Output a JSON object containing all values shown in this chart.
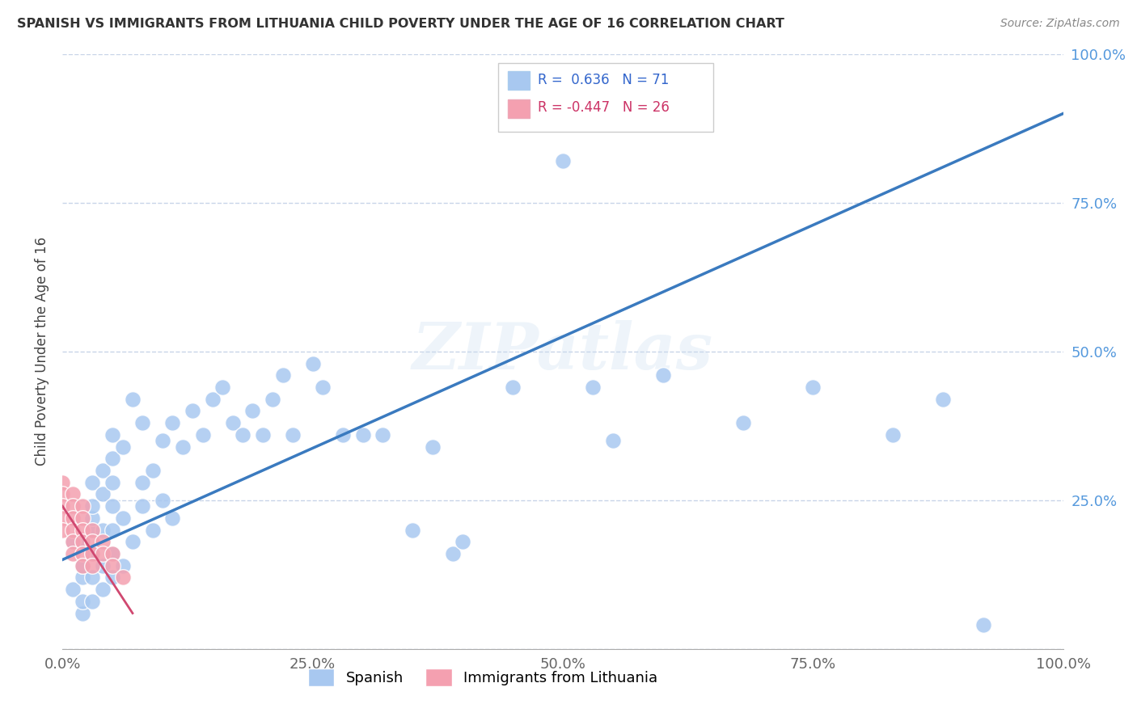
{
  "title": "SPANISH VS IMMIGRANTS FROM LITHUANIA CHILD POVERTY UNDER THE AGE OF 16 CORRELATION CHART",
  "source": "Source: ZipAtlas.com",
  "ylabel": "Child Poverty Under the Age of 16",
  "watermark": "ZIPatlas",
  "legend_r1_val": "0.636",
  "legend_n1_val": "71",
  "legend_r2_val": "-0.447",
  "legend_n2_val": "26",
  "blue_color": "#a8c8f0",
  "pink_color": "#f4a0b0",
  "line_color": "#3a7abf",
  "pink_line_color": "#d04870",
  "background_color": "#ffffff",
  "grid_color": "#c8d4e8",
  "xlim": [
    0.0,
    1.0
  ],
  "ylim": [
    0.0,
    1.0
  ],
  "xticks": [
    0.0,
    0.25,
    0.5,
    0.75,
    1.0
  ],
  "yticks": [
    0.0,
    0.25,
    0.5,
    0.75,
    1.0
  ],
  "xticklabels": [
    "0.0%",
    "25.0%",
    "50.0%",
    "75.0%",
    "100.0%"
  ],
  "yticklabels": [
    "",
    "25.0%",
    "50.0%",
    "75.0%",
    "100.0%"
  ],
  "spanish_x": [
    0.01,
    0.01,
    0.02,
    0.02,
    0.02,
    0.02,
    0.02,
    0.03,
    0.03,
    0.03,
    0.03,
    0.03,
    0.03,
    0.03,
    0.04,
    0.04,
    0.04,
    0.04,
    0.04,
    0.05,
    0.05,
    0.05,
    0.05,
    0.05,
    0.05,
    0.05,
    0.06,
    0.06,
    0.06,
    0.07,
    0.07,
    0.08,
    0.08,
    0.08,
    0.09,
    0.09,
    0.1,
    0.1,
    0.11,
    0.11,
    0.12,
    0.13,
    0.14,
    0.15,
    0.16,
    0.17,
    0.18,
    0.19,
    0.2,
    0.21,
    0.22,
    0.23,
    0.25,
    0.26,
    0.28,
    0.3,
    0.32,
    0.35,
    0.37,
    0.39,
    0.4,
    0.45,
    0.5,
    0.53,
    0.55,
    0.6,
    0.68,
    0.75,
    0.83,
    0.88,
    0.92
  ],
  "spanish_y": [
    0.1,
    0.18,
    0.06,
    0.08,
    0.12,
    0.14,
    0.18,
    0.08,
    0.12,
    0.16,
    0.2,
    0.22,
    0.24,
    0.28,
    0.1,
    0.14,
    0.2,
    0.26,
    0.3,
    0.12,
    0.16,
    0.2,
    0.24,
    0.28,
    0.32,
    0.36,
    0.14,
    0.22,
    0.34,
    0.18,
    0.42,
    0.24,
    0.28,
    0.38,
    0.2,
    0.3,
    0.25,
    0.35,
    0.22,
    0.38,
    0.34,
    0.4,
    0.36,
    0.42,
    0.44,
    0.38,
    0.36,
    0.4,
    0.36,
    0.42,
    0.46,
    0.36,
    0.48,
    0.44,
    0.36,
    0.36,
    0.36,
    0.2,
    0.34,
    0.16,
    0.18,
    0.44,
    0.82,
    0.44,
    0.35,
    0.46,
    0.38,
    0.44,
    0.36,
    0.42,
    0.04
  ],
  "lithuania_x": [
    0.0,
    0.0,
    0.0,
    0.0,
    0.0,
    0.01,
    0.01,
    0.01,
    0.01,
    0.01,
    0.01,
    0.02,
    0.02,
    0.02,
    0.02,
    0.02,
    0.02,
    0.03,
    0.03,
    0.03,
    0.03,
    0.04,
    0.04,
    0.05,
    0.05,
    0.06
  ],
  "lithuania_y": [
    0.28,
    0.26,
    0.24,
    0.22,
    0.2,
    0.26,
    0.24,
    0.22,
    0.2,
    0.18,
    0.16,
    0.24,
    0.22,
    0.2,
    0.18,
    0.16,
    0.14,
    0.2,
    0.18,
    0.16,
    0.14,
    0.18,
    0.16,
    0.16,
    0.14,
    0.12
  ],
  "sp_line_x": [
    0.0,
    1.0
  ],
  "sp_line_y": [
    0.15,
    0.9
  ],
  "lt_line_x": [
    0.0,
    0.07
  ],
  "lt_line_y": [
    0.24,
    0.06
  ]
}
